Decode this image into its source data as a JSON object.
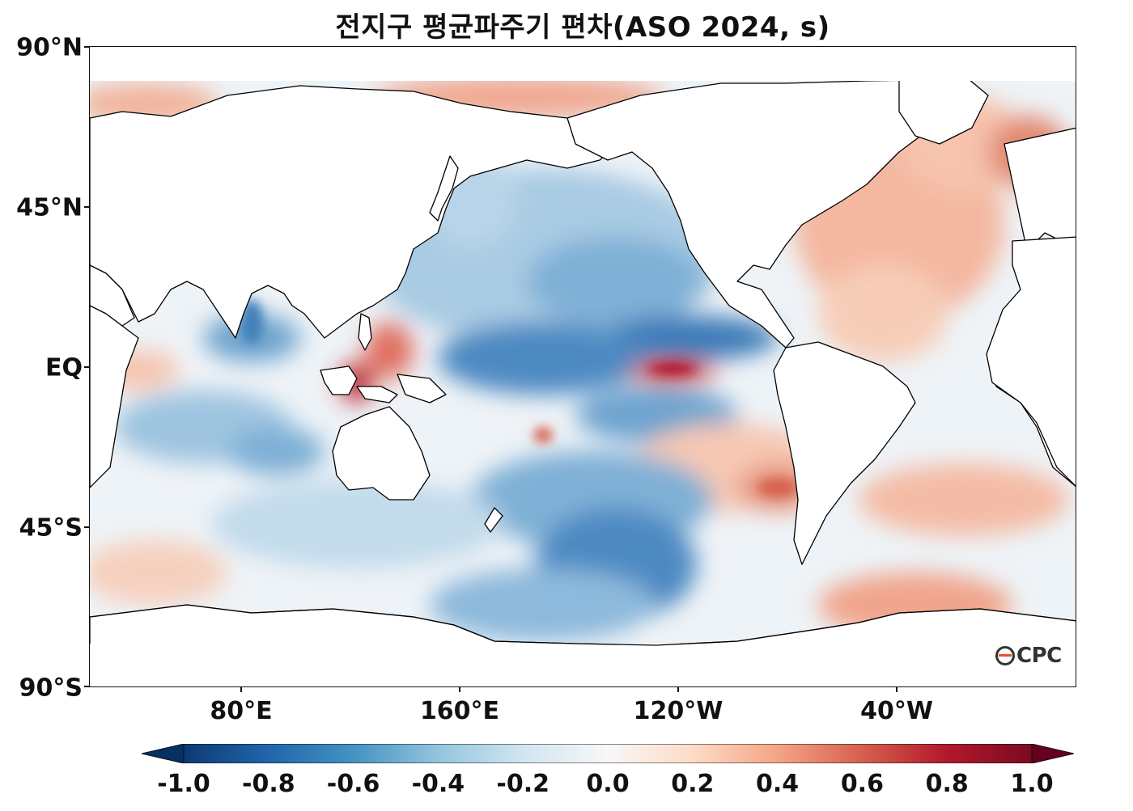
{
  "title": "전지구 평균파주기 편차(ASO 2024, s)",
  "lat_ticks": [
    "90°N",
    "45°N",
    "EQ",
    "45°S",
    "90°S"
  ],
  "lon_ticks": [
    "80°E",
    "160°E",
    "120°W",
    "40°W"
  ],
  "colorbar": {
    "min": -1.0,
    "max": 1.0,
    "labels": [
      "-1.0",
      "-0.8",
      "-0.6",
      "-0.4",
      "-0.2",
      "0.0",
      "0.2",
      "0.4",
      "0.6",
      "0.8",
      "1.0"
    ],
    "colormap": "RdBu_r",
    "extend": "both",
    "colors": [
      "#053061",
      "#2166ac",
      "#4393c3",
      "#92c5de",
      "#d1e5f0",
      "#f7f7f7",
      "#fddbc7",
      "#f4a582",
      "#d6604d",
      "#b2182b",
      "#67001f"
    ]
  },
  "logo": "OCPC",
  "map": {
    "projection": "PlateCarree",
    "central_longitude": "~150°E",
    "land_color": "#ffffff",
    "coastline_color": "#000000"
  }
}
